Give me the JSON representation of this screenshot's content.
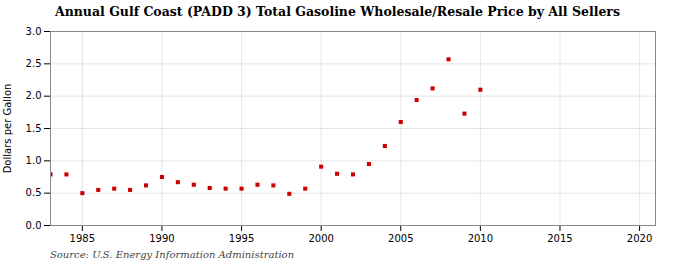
{
  "chart_data": {
    "type": "scatter",
    "title": "Annual Gulf Coast (PADD 3) Total Gasoline Wholesale/Resale Price by All Sellers",
    "ylabel": "Dollars per Gallon",
    "source": "Source: U.S. Energy Information Administration",
    "x": [
      1983,
      1984,
      1985,
      1986,
      1987,
      1988,
      1989,
      1990,
      1991,
      1992,
      1993,
      1994,
      1995,
      1996,
      1997,
      1998,
      1999,
      2000,
      2001,
      2002,
      2003,
      2004,
      2005,
      2006,
      2007,
      2008,
      2009,
      2010
    ],
    "values": [
      0.79,
      0.79,
      0.5,
      0.55,
      0.57,
      0.55,
      0.62,
      0.75,
      0.67,
      0.63,
      0.58,
      0.57,
      0.57,
      0.63,
      0.62,
      0.49,
      0.57,
      0.91,
      0.8,
      0.79,
      0.95,
      1.23,
      1.6,
      1.94,
      2.12,
      2.57,
      1.73,
      2.1
    ],
    "color": "#cc0000",
    "marker": "square",
    "xlim": [
      1983,
      2021
    ],
    "ylim": [
      0.0,
      3.0
    ],
    "xticks": [
      1985,
      1990,
      1995,
      2000,
      2005,
      2010,
      2015,
      2020
    ],
    "yticks": [
      {
        "value": 0.0,
        "label": "0.0"
      },
      0.5,
      {
        "value": 1.0,
        "label": "1.0"
      },
      1.5,
      {
        "value": 2.0,
        "label": "2.0"
      },
      2.5,
      {
        "value": 3.0,
        "label": "3.0"
      }
    ],
    "grid": true
  }
}
